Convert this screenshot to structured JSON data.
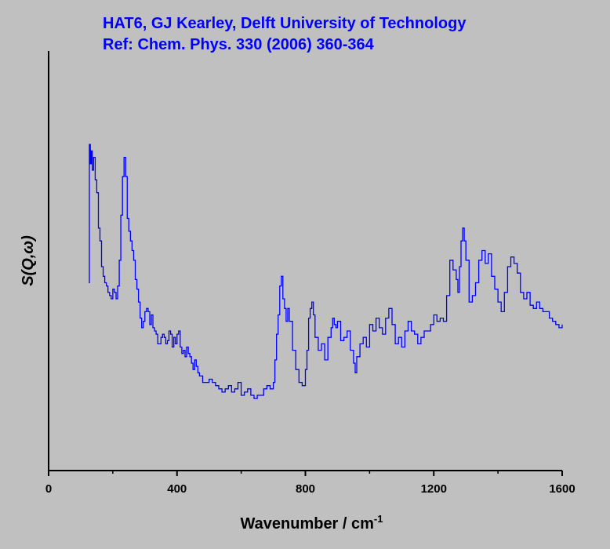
{
  "title_lines": [
    "HAT6, GJ Kearley, Delft University of Technology",
    "Ref: Chem. Phys. 330 (2006) 360-364"
  ],
  "colors": {
    "background": "#c0c0c0",
    "series": "#0000ff",
    "axes": "#000000",
    "title": "#0000ff"
  },
  "chart_data": {
    "type": "line",
    "title": "HAT6, GJ Kearley, Delft University of Technology",
    "subtitle": "Ref: Chem. Phys. 330 (2006) 360-364",
    "xlabel": "Wavenumber / cm",
    "xlabel_superscript": "-1",
    "ylabel": "S(Q,ω)",
    "xlim": [
      0,
      1600
    ],
    "ylim": [
      0,
      1
    ],
    "xticks": [
      0,
      400,
      800,
      1200,
      1600
    ],
    "xtick_labels": [
      "0",
      "400",
      "800",
      "1200",
      "1600"
    ],
    "y_tick_labels_shown": false,
    "grid": false,
    "legend": "none",
    "step_style": true,
    "series": [
      {
        "color": "#0000ff",
        "x": [
          125,
          127,
          130,
          133,
          136,
          140,
          145,
          150,
          155,
          160,
          165,
          170,
          175,
          180,
          185,
          190,
          195,
          200,
          205,
          210,
          215,
          220,
          225,
          230,
          235,
          240,
          245,
          250,
          255,
          260,
          265,
          270,
          275,
          280,
          285,
          290,
          295,
          300,
          305,
          310,
          315,
          320,
          325,
          330,
          335,
          340,
          345,
          350,
          355,
          360,
          365,
          370,
          375,
          380,
          385,
          390,
          395,
          400,
          405,
          410,
          415,
          420,
          425,
          430,
          435,
          440,
          445,
          450,
          455,
          460,
          465,
          470,
          480,
          490,
          500,
          510,
          520,
          530,
          540,
          550,
          560,
          570,
          580,
          590,
          600,
          610,
          620,
          630,
          640,
          650,
          660,
          670,
          680,
          690,
          700,
          705,
          710,
          715,
          720,
          725,
          730,
          735,
          740,
          745,
          750,
          760,
          770,
          780,
          790,
          800,
          805,
          810,
          815,
          820,
          825,
          830,
          840,
          850,
          860,
          870,
          880,
          885,
          890,
          895,
          900,
          910,
          920,
          930,
          940,
          950,
          955,
          960,
          970,
          980,
          990,
          1000,
          1010,
          1020,
          1030,
          1040,
          1050,
          1060,
          1070,
          1080,
          1090,
          1100,
          1110,
          1120,
          1130,
          1140,
          1150,
          1160,
          1170,
          1180,
          1190,
          1200,
          1210,
          1220,
          1230,
          1240,
          1250,
          1260,
          1270,
          1275,
          1280,
          1285,
          1290,
          1295,
          1300,
          1310,
          1320,
          1330,
          1340,
          1350,
          1360,
          1370,
          1380,
          1390,
          1400,
          1410,
          1420,
          1430,
          1440,
          1450,
          1460,
          1470,
          1480,
          1490,
          1500,
          1510,
          1520,
          1530,
          1540,
          1550,
          1560,
          1570,
          1580,
          1590,
          1600
        ],
        "y": [
          0.45,
          0.88,
          0.82,
          0.86,
          0.8,
          0.84,
          0.77,
          0.73,
          0.62,
          0.58,
          0.5,
          0.47,
          0.45,
          0.44,
          0.42,
          0.41,
          0.4,
          0.43,
          0.42,
          0.4,
          0.44,
          0.52,
          0.66,
          0.78,
          0.84,
          0.78,
          0.65,
          0.61,
          0.58,
          0.55,
          0.52,
          0.46,
          0.43,
          0.39,
          0.34,
          0.31,
          0.33,
          0.36,
          0.37,
          0.36,
          0.32,
          0.35,
          0.31,
          0.3,
          0.29,
          0.26,
          0.26,
          0.28,
          0.29,
          0.28,
          0.26,
          0.27,
          0.3,
          0.29,
          0.25,
          0.28,
          0.26,
          0.29,
          0.3,
          0.25,
          0.23,
          0.24,
          0.22,
          0.25,
          0.23,
          0.22,
          0.2,
          0.18,
          0.21,
          0.19,
          0.17,
          0.16,
          0.14,
          0.14,
          0.15,
          0.14,
          0.13,
          0.12,
          0.11,
          0.12,
          0.13,
          0.11,
          0.12,
          0.14,
          0.1,
          0.11,
          0.12,
          0.1,
          0.09,
          0.1,
          0.1,
          0.12,
          0.13,
          0.12,
          0.14,
          0.21,
          0.29,
          0.35,
          0.44,
          0.47,
          0.4,
          0.37,
          0.33,
          0.37,
          0.33,
          0.24,
          0.18,
          0.14,
          0.13,
          0.18,
          0.24,
          0.34,
          0.37,
          0.39,
          0.35,
          0.28,
          0.24,
          0.26,
          0.21,
          0.28,
          0.31,
          0.34,
          0.32,
          0.31,
          0.33,
          0.27,
          0.28,
          0.3,
          0.24,
          0.2,
          0.17,
          0.22,
          0.26,
          0.28,
          0.25,
          0.32,
          0.3,
          0.34,
          0.31,
          0.29,
          0.34,
          0.37,
          0.32,
          0.26,
          0.28,
          0.25,
          0.3,
          0.33,
          0.3,
          0.29,
          0.26,
          0.28,
          0.3,
          0.3,
          0.32,
          0.35,
          0.33,
          0.34,
          0.33,
          0.41,
          0.52,
          0.49,
          0.46,
          0.42,
          0.5,
          0.58,
          0.62,
          0.58,
          0.52,
          0.39,
          0.41,
          0.45,
          0.52,
          0.55,
          0.51,
          0.54,
          0.47,
          0.43,
          0.39,
          0.36,
          0.42,
          0.5,
          0.53,
          0.51,
          0.48,
          0.42,
          0.4,
          0.42,
          0.38,
          0.37,
          0.39,
          0.37,
          0.36,
          0.36,
          0.34,
          0.33,
          0.32,
          0.31,
          0.32
        ]
      }
    ]
  }
}
